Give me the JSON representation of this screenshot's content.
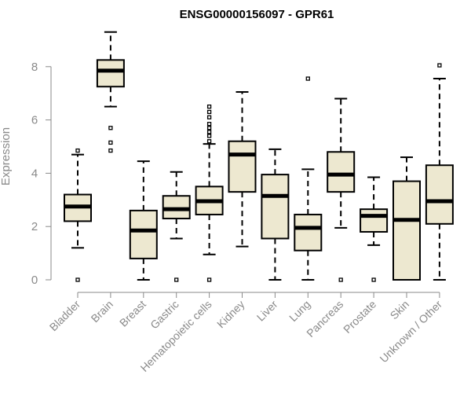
{
  "chart_data": {
    "type": "boxplot",
    "title": "ENSG00000156097 - GPR61",
    "xlabel": "",
    "ylabel": "Expression",
    "ylim": [
      0,
      9.3
    ],
    "yticks": [
      0,
      2,
      4,
      6,
      8
    ],
    "box_color": "#ede8d0",
    "categories": [
      "Bladder",
      "Brain",
      "Breast",
      "Gastric",
      "Hematopoietic cells",
      "Kidney",
      "Liver",
      "Lung",
      "Pancreas",
      "Prostate",
      "Skin",
      "Unknown / Other"
    ],
    "boxes": [
      {
        "category": "Bladder",
        "whisker_low": 1.2,
        "q1": 2.2,
        "median": 2.75,
        "q3": 3.2,
        "whisker_high": 4.7,
        "outliers": [
          0,
          4.85
        ]
      },
      {
        "category": "Brain",
        "whisker_low": 6.5,
        "q1": 7.25,
        "median": 7.85,
        "q3": 8.25,
        "whisker_high": 9.3,
        "outliers": [
          4.85,
          5.15,
          5.7
        ]
      },
      {
        "category": "Breast",
        "whisker_low": 0,
        "q1": 0.8,
        "median": 1.85,
        "q3": 2.6,
        "whisker_high": 4.45,
        "outliers": []
      },
      {
        "category": "Gastric",
        "whisker_low": 1.55,
        "q1": 2.3,
        "median": 2.65,
        "q3": 3.15,
        "whisker_high": 4.05,
        "outliers": [
          0
        ]
      },
      {
        "category": "Hematopoietic cells",
        "whisker_low": 0.95,
        "q1": 2.45,
        "median": 2.95,
        "q3": 3.5,
        "whisker_high": 5.1,
        "outliers": [
          0,
          5.2,
          5.4,
          5.55,
          5.7,
          5.85,
          6.1,
          6.3,
          6.5
        ]
      },
      {
        "category": "Kidney",
        "whisker_low": 1.25,
        "q1": 3.3,
        "median": 4.7,
        "q3": 5.2,
        "whisker_high": 7.05,
        "outliers": []
      },
      {
        "category": "Liver",
        "whisker_low": 0,
        "q1": 1.55,
        "median": 3.15,
        "q3": 3.95,
        "whisker_high": 4.9,
        "outliers": []
      },
      {
        "category": "Lung",
        "whisker_low": 0,
        "q1": 1.1,
        "median": 1.95,
        "q3": 2.45,
        "whisker_high": 4.15,
        "outliers": [
          7.55
        ]
      },
      {
        "category": "Pancreas",
        "whisker_low": 1.95,
        "q1": 3.3,
        "median": 3.95,
        "q3": 4.8,
        "whisker_high": 6.8,
        "outliers": [
          0
        ]
      },
      {
        "category": "Prostate",
        "whisker_low": 1.3,
        "q1": 1.8,
        "median": 2.4,
        "q3": 2.65,
        "whisker_high": 3.85,
        "outliers": [
          0
        ]
      },
      {
        "category": "Skin",
        "whisker_low": 0,
        "q1": 0,
        "median": 2.25,
        "q3": 3.7,
        "whisker_high": 4.6,
        "outliers": []
      },
      {
        "category": "Unknown / Other",
        "whisker_low": 0,
        "q1": 2.1,
        "median": 2.95,
        "q3": 4.3,
        "whisker_high": 7.55,
        "outliers": [
          8.05
        ]
      }
    ]
  }
}
